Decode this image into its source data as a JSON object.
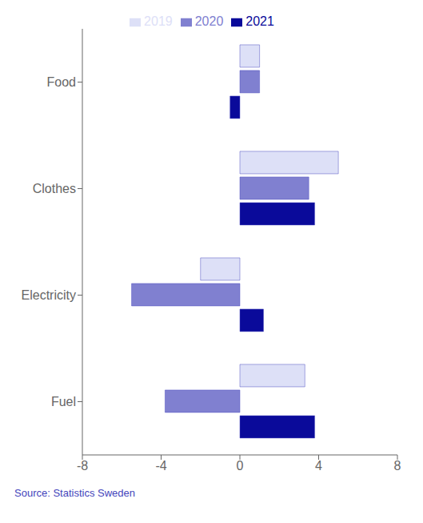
{
  "chart_data": {
    "type": "bar",
    "orientation": "horizontal",
    "categories": [
      "Food",
      "Clothes",
      "Electricity",
      "Fuel"
    ],
    "series": [
      {
        "name": "2019",
        "color": "#dde0f7",
        "values": [
          1.0,
          5.0,
          -2.0,
          3.3
        ]
      },
      {
        "name": "2020",
        "color": "#8080d0",
        "values": [
          1.0,
          3.5,
          -5.5,
          -3.8
        ]
      },
      {
        "name": "2021",
        "color": "#0a0a9a",
        "values": [
          -0.5,
          3.8,
          1.2,
          3.8
        ]
      }
    ],
    "xlim": [
      -8,
      8
    ],
    "xticks": [
      -8,
      -4,
      0,
      4,
      8
    ],
    "legend": "top",
    "annotations": [
      "Source: Statistics Sweden"
    ]
  }
}
